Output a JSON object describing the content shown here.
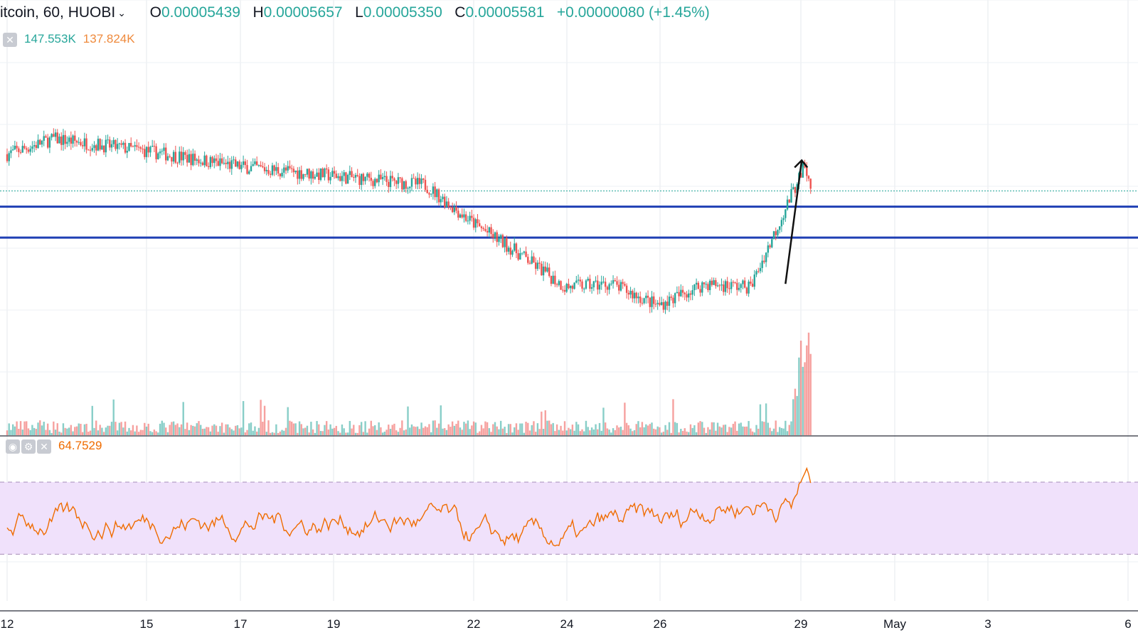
{
  "header": {
    "symbol": "itcoin, 60, HUOBI",
    "open_label": "O",
    "open": "0.00005439",
    "high_label": "H",
    "high": "0.00005657",
    "low_label": "L",
    "low": "0.00005350",
    "close_label": "C",
    "close": "0.00005581",
    "change": "+0.00000080 (+1.45%)"
  },
  "volume_legend": {
    "value_a": "147.553K",
    "value_b": "137.824K"
  },
  "rsi_legend": {
    "value": "64.7529"
  },
  "icons": {
    "dropdown": "chevron-down-icon",
    "close": "close-icon",
    "eye": "eye-icon",
    "settings": "gear-icon"
  },
  "colors": {
    "up": "#26a69a",
    "down": "#ef5350",
    "support_line": "#1f3fb4",
    "rsi_line": "#ef6c00",
    "rsi_band": "#f0e1fb",
    "arrow": "#111111"
  },
  "chart_data": [
    {
      "type": "candlestick",
      "x_tick_labels": [
        "12",
        "15",
        "17",
        "19",
        "22",
        "24",
        "26",
        "29",
        "May",
        "3",
        "6"
      ],
      "price_series": [
        {
          "x": "12",
          "y": 5.7e-05
        },
        {
          "x": "13",
          "y": 5.75e-05
        },
        {
          "x": "15",
          "y": 5.71e-05
        },
        {
          "x": "17",
          "y": 5.66e-05
        },
        {
          "x": "19",
          "y": 5.63e-05
        },
        {
          "x": "21",
          "y": 5.6e-05
        },
        {
          "x": "22",
          "y": 5.48e-05
        },
        {
          "x": "23",
          "y": 5.38e-05
        },
        {
          "x": "24",
          "y": 5.27e-05
        },
        {
          "x": "25",
          "y": 5.28e-05
        },
        {
          "x": "26",
          "y": 5.21e-05
        },
        {
          "x": "27",
          "y": 5.28e-05
        },
        {
          "x": "28",
          "y": 5.27e-05
        },
        {
          "x": "29",
          "y": 5.66e-05
        },
        {
          "x": "29",
          "y": 5.58e-05
        }
      ],
      "horizontal_levels": [
        5.53e-05,
        5.43e-05
      ],
      "last_price": 5.581e-05
    },
    {
      "type": "bar",
      "name": "volume",
      "legend_values": [
        "147.553K",
        "137.824K"
      ]
    },
    {
      "type": "line",
      "name": "RSI",
      "last_value": 64.7529,
      "band": [
        30,
        70
      ]
    }
  ]
}
